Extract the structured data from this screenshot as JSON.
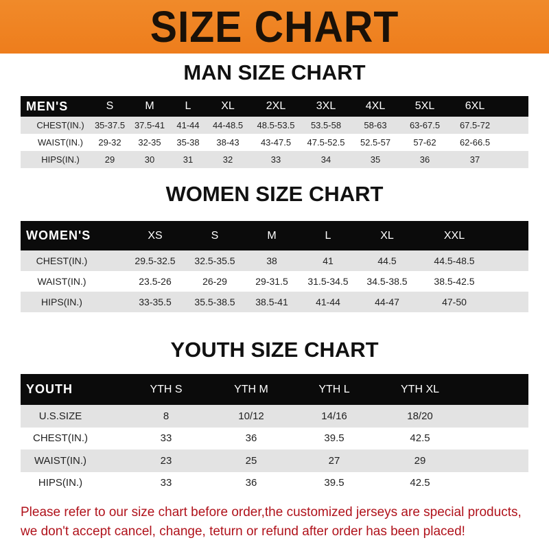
{
  "banner": {
    "title": "SIZE CHART",
    "color": "#ef8022"
  },
  "men": {
    "title": "MAN SIZE CHART",
    "header": [
      "MEN'S",
      "S",
      "M",
      "L",
      "XL",
      "2XL",
      "3XL",
      "4XL",
      "5XL",
      "6XL"
    ],
    "rows": [
      [
        "CHEST(IN.)",
        "35-37.5",
        "37.5-41",
        "41-44",
        "44-48.5",
        "48.5-53.5",
        "53.5-58",
        "58-63",
        "63-67.5",
        "67.5-72"
      ],
      [
        "WAIST(IN.)",
        "29-32",
        "32-35",
        "35-38",
        "38-43",
        "43-47.5",
        "47.5-52.5",
        "52.5-57",
        "57-62",
        "62-66.5"
      ],
      [
        "HIPS(IN.)",
        "29",
        "30",
        "31",
        "32",
        "33",
        "34",
        "35",
        "36",
        "37"
      ]
    ]
  },
  "women": {
    "title": "WOMEN SIZE CHART",
    "header": [
      "WOMEN'S",
      "XS",
      "S",
      "M",
      "L",
      "XL",
      "XXL"
    ],
    "rows": [
      [
        "CHEST(IN.)",
        "29.5-32.5",
        "32.5-35.5",
        "38",
        "41",
        "44.5",
        "44.5-48.5"
      ],
      [
        "WAIST(IN.)",
        "23.5-26",
        "26-29",
        "29-31.5",
        "31.5-34.5",
        "34.5-38.5",
        "38.5-42.5"
      ],
      [
        "HIPS(IN.)",
        "33-35.5",
        "35.5-38.5",
        "38.5-41",
        "41-44",
        "44-47",
        "47-50"
      ]
    ]
  },
  "youth": {
    "title": "YOUTH SIZE CHART",
    "header": [
      "YOUTH",
      "YTH S",
      "YTH M",
      "YTH L",
      "YTH XL"
    ],
    "rows": [
      [
        "U.S.SIZE",
        "8",
        "10/12",
        "14/16",
        "18/20"
      ],
      [
        "CHEST(IN.)",
        "33",
        "36",
        "39.5",
        "42.5"
      ],
      [
        "WAIST(IN.)",
        "23",
        "25",
        "27",
        "29"
      ],
      [
        "HIPS(IN.)",
        "33",
        "36",
        "39.5",
        "42.5"
      ]
    ]
  },
  "notice": {
    "line1": "Please refer to our size chart before order,the customized jerseys are special products,",
    "line2": "we don't accept cancel, change, teturn or refund after order has been placed!"
  }
}
